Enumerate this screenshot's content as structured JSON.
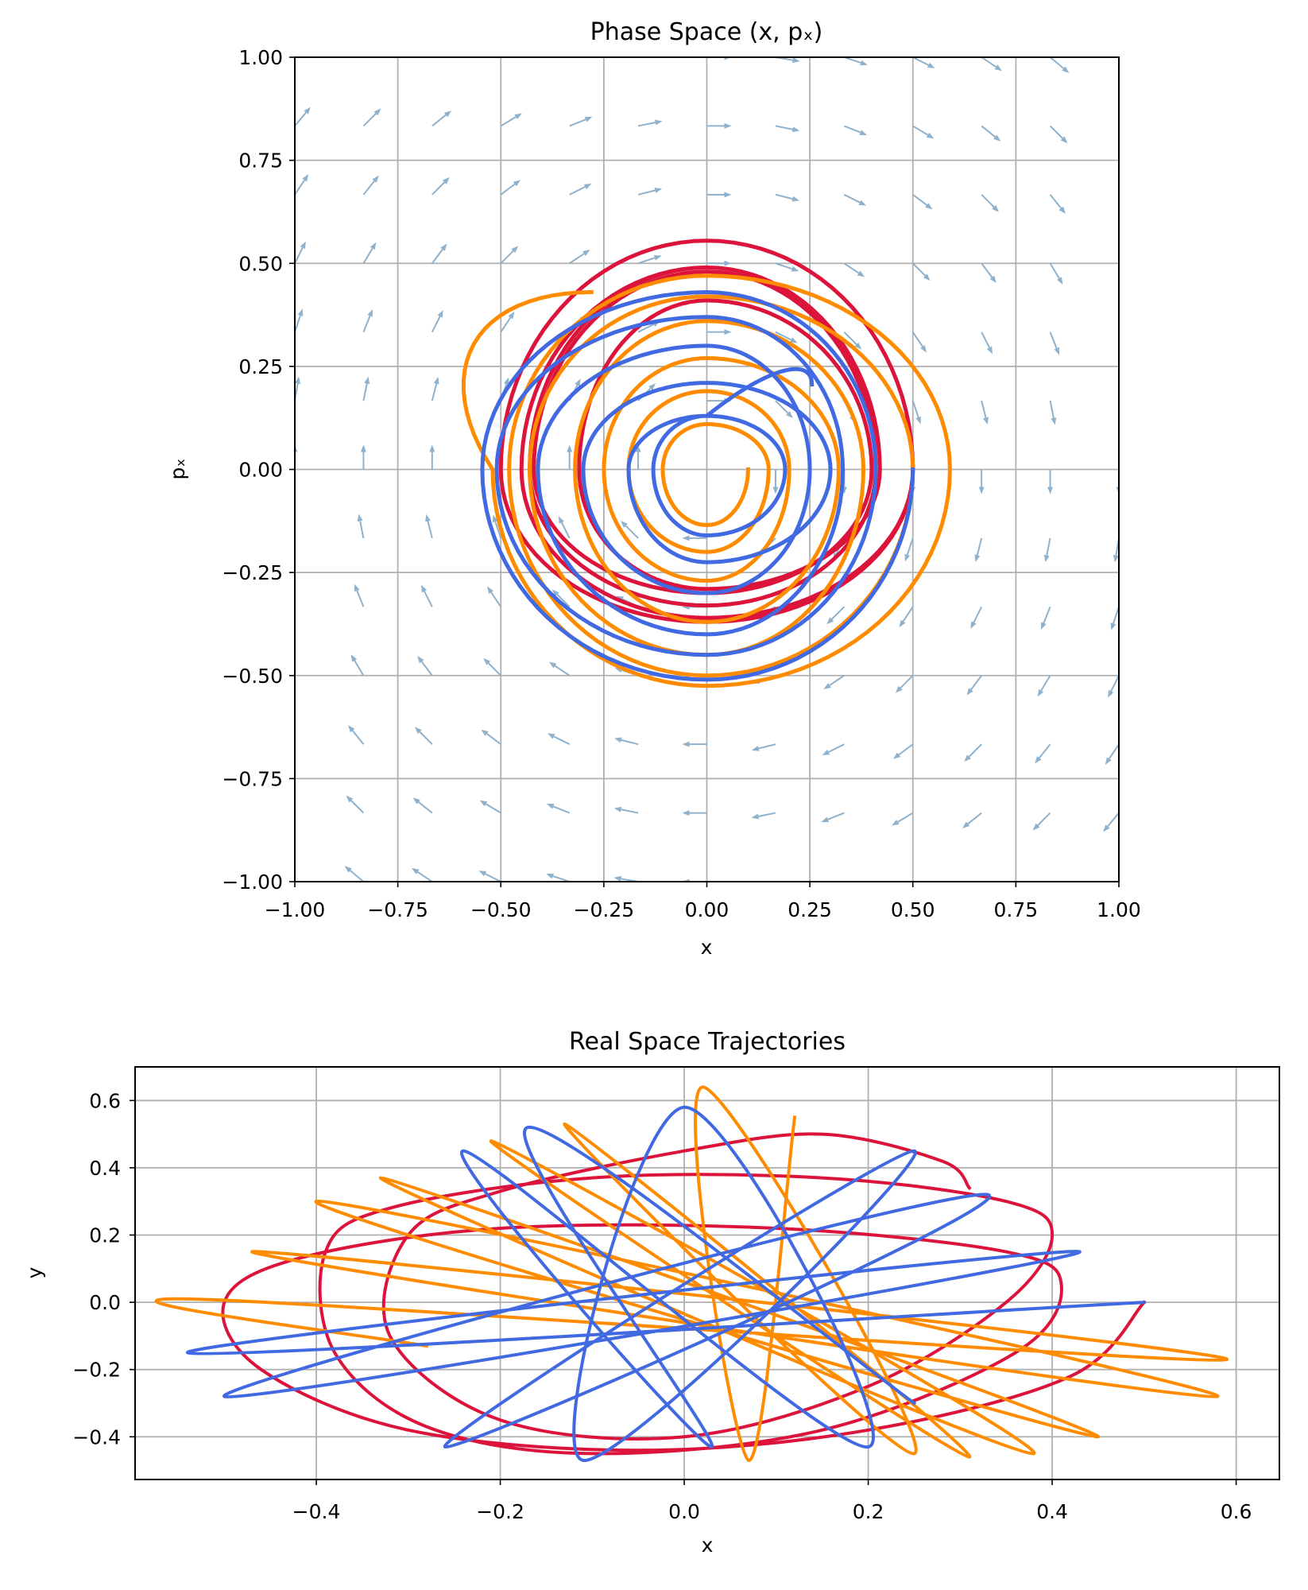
{
  "colors": {
    "series_red": "#dc143c",
    "series_orange": "#ff8c00",
    "series_blue": "#4169e1",
    "quiver": "#8fb1cb",
    "grid": "#b0b0b0"
  },
  "chart_data": [
    {
      "type": "line",
      "title": "Phase Space (x, pₓ)",
      "xlabel": "x",
      "ylabel": "pₓ",
      "xlim": [
        -1.0,
        1.0
      ],
      "ylim": [
        -1.0,
        1.0
      ],
      "grid": true,
      "xticks": [
        -1.0,
        -0.75,
        -0.5,
        -0.25,
        0.0,
        0.25,
        0.5,
        0.75,
        1.0
      ],
      "xtick_labels": [
        "−1.00",
        "−0.75",
        "−0.50",
        "−0.25",
        "0.00",
        "0.25",
        "0.50",
        "0.75",
        "1.00"
      ],
      "yticks": [
        -1.0,
        -0.75,
        -0.5,
        -0.25,
        0.0,
        0.25,
        0.5,
        0.75,
        1.0
      ],
      "ytick_labels": [
        "−1.00",
        "−0.75",
        "−0.50",
        "−0.25",
        "0.00",
        "0.25",
        "0.50",
        "0.75",
        "1.00"
      ],
      "quiver": {
        "x": [
          -1.0,
          -0.8333,
          -0.6667,
          -0.5,
          -0.3333,
          -0.1667,
          0.0,
          0.1667,
          0.3333,
          0.5,
          0.6667,
          0.8333,
          1.0
        ],
        "y": [
          -1.0,
          -0.8333,
          -0.6667,
          -0.5,
          -0.3333,
          -0.1667,
          0.0,
          0.1667,
          0.3333,
          0.5,
          0.6667,
          0.8333,
          1.0
        ],
        "normalized": true
      },
      "series": [
        {
          "color": "series_red",
          "points": [
            [
              0.5,
              0
            ],
            [
              0,
              -0.37
            ],
            [
              -0.5,
              0
            ],
            [
              0,
              0.555
            ],
            [
              0.5,
              0
            ],
            [
              0,
              -0.36
            ],
            [
              -0.45,
              0
            ],
            [
              0,
              0.49
            ],
            [
              0.41,
              0
            ],
            [
              0,
              -0.33
            ],
            [
              -0.43,
              0
            ],
            [
              0,
              0.49
            ],
            [
              0.42,
              0
            ],
            [
              0,
              -0.29
            ],
            [
              -0.31,
              0
            ],
            [
              0,
              0.41
            ],
            [
              0.4,
              0
            ],
            [
              0,
              -0.3
            ],
            [
              -0.42,
              0
            ],
            [
              0,
              0.48
            ],
            [
              0.41,
              0
            ]
          ]
        },
        {
          "color": "series_orange",
          "points": [
            [
              0.1,
              0
            ],
            [
              0,
              -0.135
            ],
            [
              -0.107,
              0
            ],
            [
              0,
              0.11
            ],
            [
              0.15,
              0
            ],
            [
              0,
              -0.2
            ],
            [
              -0.19,
              0
            ],
            [
              0,
              0.19
            ],
            [
              0.2,
              0
            ],
            [
              0,
              -0.27
            ],
            [
              -0.25,
              0
            ],
            [
              0,
              0.27
            ],
            [
              0.32,
              0
            ],
            [
              0,
              -0.37
            ],
            [
              -0.32,
              0
            ],
            [
              0,
              0.36
            ],
            [
              0.38,
              0
            ],
            [
              0,
              -0.45
            ],
            [
              -0.43,
              0
            ],
            [
              0,
              0.42
            ],
            [
              0.5,
              0
            ],
            [
              0,
              -0.5
            ],
            [
              -0.48,
              0
            ],
            [
              0,
              0.47
            ],
            [
              0.59,
              0
            ],
            [
              0,
              -0.525
            ],
            [
              -0.52,
              0
            ],
            [
              -0.28,
              0.43
            ]
          ]
        },
        {
          "color": "series_blue",
          "points": [
            [
              0.5,
              0
            ],
            [
              0,
              -0.51
            ],
            [
              -0.545,
              0
            ],
            [
              0,
              0.43
            ],
            [
              0.41,
              0
            ],
            [
              0,
              -0.45
            ],
            [
              -0.51,
              0
            ],
            [
              0,
              0.37
            ],
            [
              0.33,
              0
            ],
            [
              0,
              -0.4
            ],
            [
              -0.41,
              0
            ],
            [
              0,
              0.3
            ],
            [
              0.25,
              0
            ],
            [
              0,
              -0.3
            ],
            [
              -0.3,
              0
            ],
            [
              0,
              0.21
            ],
            [
              0.3,
              0
            ],
            [
              0,
              -0.225
            ],
            [
              -0.19,
              0
            ],
            [
              0,
              0.13
            ],
            [
              0.19,
              0
            ],
            [
              0,
              -0.16
            ],
            [
              -0.13,
              0
            ],
            [
              0,
              0.13
            ],
            [
              0.255,
              0.206
            ]
          ]
        }
      ]
    },
    {
      "type": "line",
      "title": "Real Space Trajectories",
      "xlabel": "x",
      "ylabel": "y",
      "xlim": [
        -0.597,
        0.647
      ],
      "ylim": [
        -0.527,
        0.7
      ],
      "grid": true,
      "xticks": [
        -0.4,
        -0.2,
        0.0,
        0.2,
        0.4,
        0.6
      ],
      "xtick_labels": [
        "−0.4",
        "−0.2",
        "0.0",
        "0.2",
        "0.4",
        "0.6"
      ],
      "yticks": [
        -0.4,
        -0.2,
        0.0,
        0.2,
        0.4,
        0.6
      ],
      "ytick_labels": [
        "−0.4",
        "−0.2",
        "0.0",
        "0.2",
        "0.4",
        "0.6"
      ],
      "series": [
        {
          "color": "series_red",
          "points": [
            [
              0.5,
              0
            ],
            [
              0.42,
              -0.22
            ],
            [
              0.2,
              -0.38
            ],
            [
              -0.05,
              -0.44
            ],
            [
              -0.3,
              -0.38
            ],
            [
              -0.46,
              -0.2
            ],
            [
              -0.5,
              0
            ],
            [
              -0.42,
              0.13
            ],
            [
              -0.2,
              0.22
            ],
            [
              0.1,
              0.22
            ],
            [
              0.35,
              0.15
            ],
            [
              0.41,
              0.05
            ],
            [
              0.36,
              -0.15
            ],
            [
              0.15,
              -0.38
            ],
            [
              -0.1,
              -0.45
            ],
            [
              -0.28,
              -0.37
            ],
            [
              -0.38,
              -0.15
            ],
            [
              -0.39,
              0.15
            ],
            [
              -0.32,
              0.28
            ],
            [
              -0.1,
              0.37
            ],
            [
              0.15,
              0.37
            ],
            [
              0.35,
              0.3
            ],
            [
              0.4,
              0.2
            ],
            [
              0.35,
              0.0
            ],
            [
              0.2,
              -0.25
            ],
            [
              0.0,
              -0.4
            ],
            [
              -0.2,
              -0.35
            ],
            [
              -0.32,
              -0.1
            ],
            [
              -0.3,
              0.2
            ],
            [
              -0.2,
              0.33
            ],
            [
              0.0,
              0.45
            ],
            [
              0.15,
              0.5
            ],
            [
              0.28,
              0.42
            ],
            [
              0.31,
              0.34
            ]
          ]
        },
        {
          "color": "series_orange",
          "points": [
            [
              -0.28,
              -0.13
            ],
            [
              -0.54,
              0.01
            ],
            [
              0.59,
              -0.17
            ],
            [
              -0.47,
              0.15
            ],
            [
              0.58,
              -0.28
            ],
            [
              -0.4,
              0.3
            ],
            [
              0.45,
              -0.4
            ],
            [
              -0.33,
              0.37
            ],
            [
              0.38,
              -0.45
            ],
            [
              -0.21,
              0.48
            ],
            [
              0.31,
              -0.46
            ],
            [
              -0.13,
              0.53
            ],
            [
              0.25,
              -0.45
            ],
            [
              0.02,
              0.64
            ],
            [
              0.07,
              -0.47
            ],
            [
              0.12,
              0.55
            ]
          ]
        },
        {
          "color": "series_blue",
          "points": [
            [
              0.5,
              0.0
            ],
            [
              -0.54,
              -0.15
            ],
            [
              0.43,
              0.15
            ],
            [
              -0.5,
              -0.28
            ],
            [
              0.33,
              0.32
            ],
            [
              -0.26,
              -0.43
            ],
            [
              0.25,
              0.45
            ],
            [
              -0.11,
              -0.47
            ],
            [
              0.0,
              0.58
            ],
            [
              0.2,
              -0.43
            ],
            [
              -0.24,
              0.45
            ],
            [
              0.03,
              -0.43
            ],
            [
              -0.17,
              0.52
            ],
            [
              0.25,
              -0.3
            ]
          ]
        }
      ]
    }
  ]
}
